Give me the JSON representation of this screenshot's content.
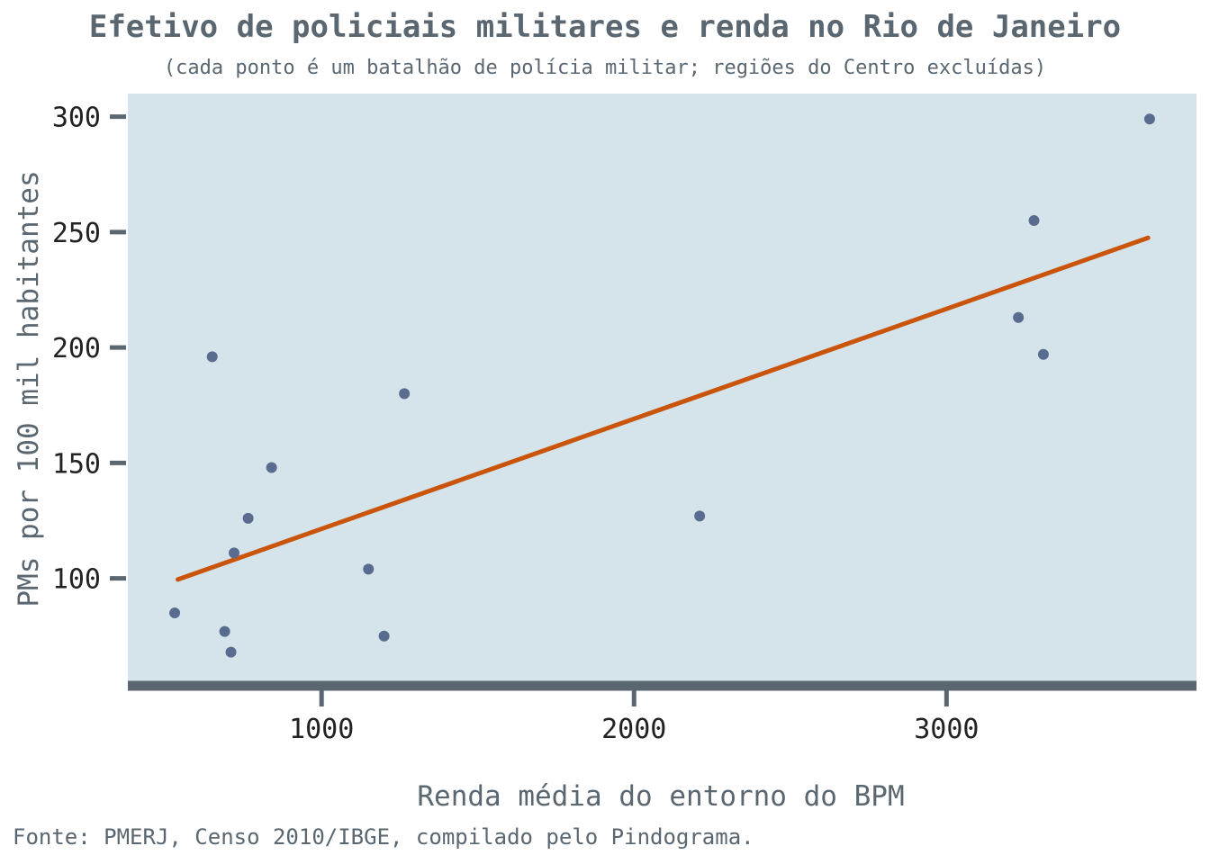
{
  "chart_data": {
    "type": "scatter",
    "title": "Efetivo de policiais militares e renda no Rio de Janeiro",
    "subtitle": "(cada ponto é um batalhão de polícia militar; regiões do Centro excluídas)",
    "xlabel": "Renda média do entorno do BPM",
    "ylabel": "PMs por 100 mil habitantes",
    "caption": "Fonte: PMERJ, Censo 2010/IBGE, compilado pelo Pindograma.",
    "xlim": [
      380,
      3800
    ],
    "ylim": [
      55,
      310
    ],
    "xticks": [
      1000,
      2000,
      3000
    ],
    "yticks": [
      100,
      150,
      200,
      250,
      300
    ],
    "grid": false,
    "points": [
      {
        "x": 530,
        "y": 85
      },
      {
        "x": 650,
        "y": 196
      },
      {
        "x": 690,
        "y": 77
      },
      {
        "x": 710,
        "y": 68
      },
      {
        "x": 720,
        "y": 111
      },
      {
        "x": 765,
        "y": 126
      },
      {
        "x": 840,
        "y": 148
      },
      {
        "x": 1150,
        "y": 104
      },
      {
        "x": 1200,
        "y": 75
      },
      {
        "x": 1265,
        "y": 180
      },
      {
        "x": 2210,
        "y": 127
      },
      {
        "x": 3230,
        "y": 213
      },
      {
        "x": 3280,
        "y": 255
      },
      {
        "x": 3310,
        "y": 197
      },
      {
        "x": 3650,
        "y": 299
      }
    ],
    "trendline": {
      "x": [
        540,
        3645
      ],
      "y": [
        99.5,
        247.5
      ]
    },
    "colors": {
      "panel": "#d4e4ea",
      "point": "#596c8f",
      "trendline": "#c9540a",
      "axis": "#5b6770"
    }
  }
}
